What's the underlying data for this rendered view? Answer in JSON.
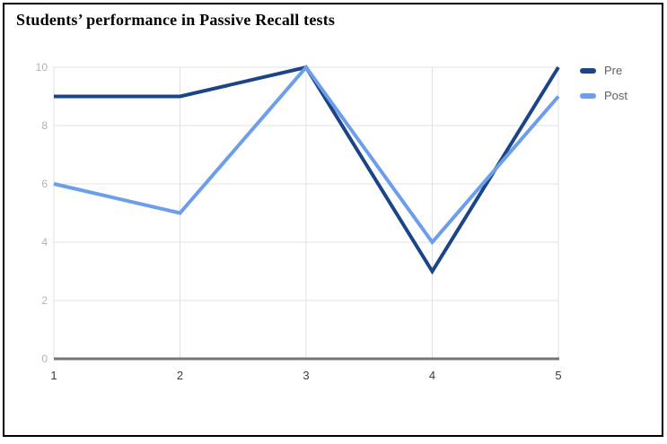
{
  "page": {
    "title": "Students’ performance in Passive Recall tests"
  },
  "colors": {
    "background": "#ffffff",
    "frame_border": "#000000",
    "grid": "#e0e0e0",
    "baseline": "#757575",
    "x_tick_label": "#3c3c3c",
    "y_tick_label": "#b3b3b3",
    "legend_text": "#616161",
    "pre": "#1c4587",
    "post": "#6d9eeb"
  },
  "legend": {
    "items": [
      {
        "label": "Pre",
        "color": "#1c4587"
      },
      {
        "label": "Post",
        "color": "#6d9eeb"
      }
    ]
  },
  "chart_data": {
    "type": "line",
    "title": "Students’ performance in Passive Recall tests",
    "x": [
      1,
      2,
      3,
      4,
      5
    ],
    "xticks": [
      "1",
      "2",
      "3",
      "4",
      "5"
    ],
    "yticks": [
      0,
      2,
      4,
      6,
      8,
      10
    ],
    "xlim": [
      1,
      5
    ],
    "ylim": [
      0,
      10
    ],
    "grid": true,
    "legend_position": "right",
    "xlabel": "",
    "ylabel": "",
    "series": [
      {
        "name": "Pre",
        "color": "#1c4587",
        "values": [
          9,
          9,
          10,
          3,
          10
        ]
      },
      {
        "name": "Post",
        "color": "#6d9eeb",
        "values": [
          6,
          5,
          10,
          4,
          9
        ]
      }
    ]
  }
}
